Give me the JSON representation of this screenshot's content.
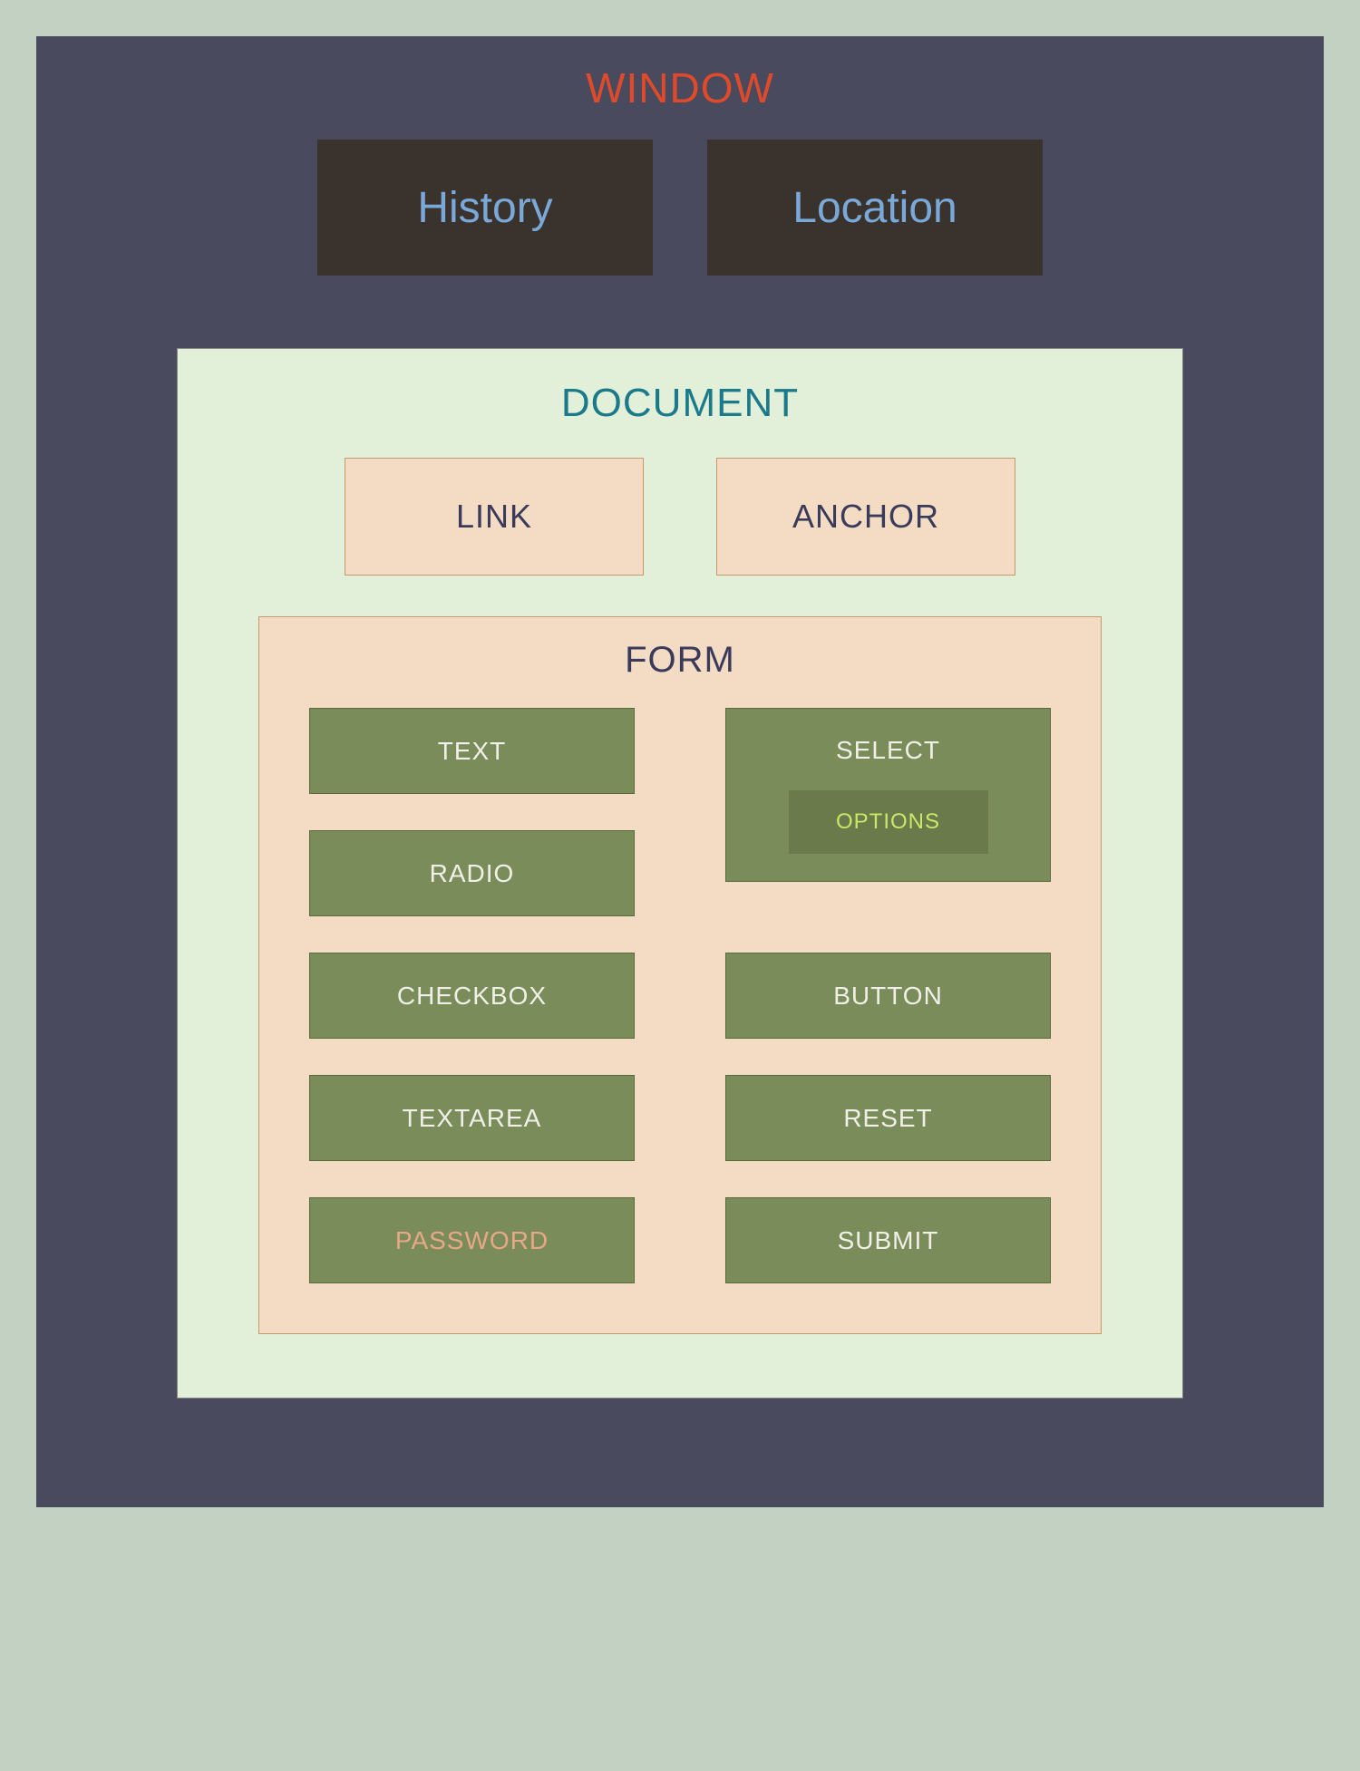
{
  "diagram": {
    "type": "nested-hierarchy",
    "page_background": "#c2d1c2",
    "window": {
      "label": "WINDOW",
      "bg": "#4a4a5e",
      "title_color": "#e04a2a",
      "title_fontsize": 46,
      "children_top": [
        {
          "label": "History",
          "bg": "#3a322c",
          "text_color": "#7aa8d8",
          "fontsize": 48
        },
        {
          "label": "Location",
          "bg": "#3a322c",
          "text_color": "#7aa8d8",
          "fontsize": 48
        }
      ],
      "document": {
        "label": "DOCUMENT",
        "bg": "#e3f0d9",
        "border": "#888888",
        "title_color": "#1a7a8a",
        "title_fontsize": 44,
        "children_top": [
          {
            "label": "LINK",
            "bg": "#f4dcc4",
            "border": "#c49a6c",
            "text_color": "#3a3a5a",
            "fontsize": 36
          },
          {
            "label": "ANCHOR",
            "bg": "#f4dcc4",
            "border": "#c49a6c",
            "text_color": "#3a3a5a",
            "fontsize": 36
          }
        ],
        "form": {
          "label": "FORM",
          "bg": "#f4dcc4",
          "border": "#c49a6c",
          "title_color": "#3a3a5a",
          "title_fontsize": 40,
          "item_bg": "#7a8c5a",
          "item_border": "#556b3a",
          "item_text_color": "#f0f0e8",
          "item_fontsize": 28,
          "left_items": [
            {
              "label": "TEXT"
            },
            {
              "label": "RADIO"
            },
            {
              "label": "CHECKBOX"
            },
            {
              "label": "TEXTAREA"
            },
            {
              "label": "PASSWORD",
              "text_color": "#e8a888"
            }
          ],
          "right_items": [
            {
              "label": "BUTTON"
            },
            {
              "label": "RESET"
            },
            {
              "label": "SUBMIT"
            }
          ],
          "select": {
            "label": "SELECT",
            "text_color": "#f0f0e8",
            "options": {
              "label": "OPTIONS",
              "bg": "#6b7a4a",
              "text_color": "#c8e868",
              "fontsize": 24
            }
          }
        }
      }
    }
  }
}
